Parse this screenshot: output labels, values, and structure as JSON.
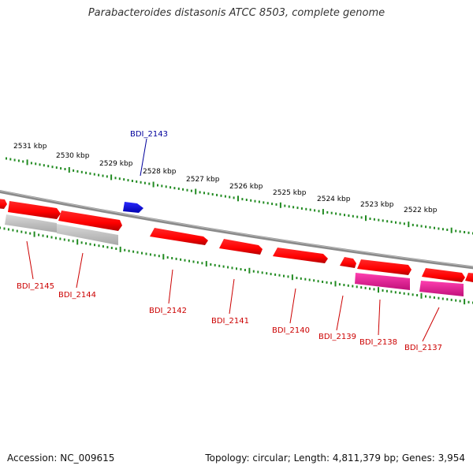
{
  "title": "Parabacteroides distasonis ATCC 8503, complete genome",
  "footer": {
    "accession": "Accession: NC_009615",
    "summary": "Topology: circular; Length: 4,811,379 bp; Genes: 3,954"
  },
  "colors": {
    "forward_gene": "#ff0000",
    "rna_gene": "#0000ff",
    "pseudogene": "#c0c0c0",
    "pink_gene": "#e0148c",
    "backbone": "#808080",
    "tick": "#228B22",
    "label_forward": "#cc0000",
    "label_rna": "#00009c"
  },
  "scale_labels": [
    "2531 kbp",
    "2530 kbp",
    "2529 kbp",
    "2528 kbp",
    "2527 kbp",
    "2526 kbp",
    "2525 kbp",
    "2524 kbp",
    "2523 kbp",
    "2522 kbp"
  ],
  "genes": [
    {
      "id": "BDI_2145",
      "label": "BDI_2145",
      "track": "lower",
      "kind": "pseudogene"
    },
    {
      "id": "BDI_2144",
      "label": "BDI_2144",
      "track": "lower",
      "kind": "pseudogene"
    },
    {
      "id": "BDI_2143",
      "label": "BDI_2143",
      "track": "upper",
      "kind": "rna"
    },
    {
      "id": "BDI_2142",
      "label": "BDI_2142",
      "track": "lower",
      "kind": "forward"
    },
    {
      "id": "BDI_2141",
      "label": "BDI_2141",
      "track": "lower",
      "kind": "forward"
    },
    {
      "id": "BDI_2140",
      "label": "BDI_2140",
      "track": "lower",
      "kind": "forward"
    },
    {
      "id": "BDI_2139",
      "label": "BDI_2139",
      "track": "lower",
      "kind": "forward"
    },
    {
      "id": "BDI_2138",
      "label": "BDI_2138",
      "track": "lower",
      "kind": "pink"
    },
    {
      "id": "BDI_2137",
      "label": "BDI_2137",
      "track": "lower",
      "kind": "pink"
    }
  ]
}
